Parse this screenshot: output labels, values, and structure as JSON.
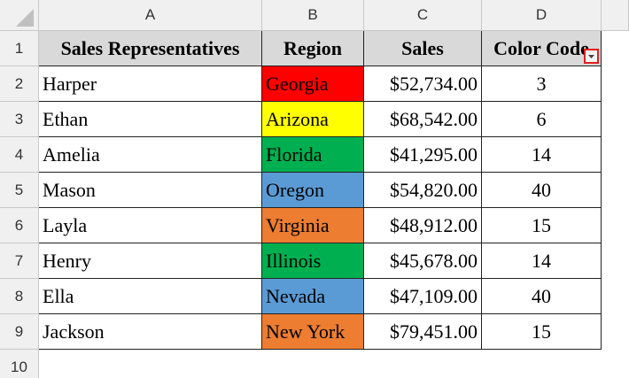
{
  "columns": [
    "A",
    "B",
    "C",
    "D"
  ],
  "row_numbers": [
    1,
    2,
    3,
    4,
    5,
    6,
    7,
    8,
    9,
    10
  ],
  "table": {
    "header": [
      "Sales Representatives",
      "Region",
      "Sales",
      "Color Code"
    ],
    "rows": [
      [
        "Harper",
        "Georgia",
        "$52,734.00",
        3
      ],
      [
        "Ethan",
        "Arizona",
        "$68,542.00",
        6
      ],
      [
        "Amelia",
        "Florida",
        "$41,295.00",
        14
      ],
      [
        "Mason",
        "Oregon",
        "$54,820.00",
        40
      ],
      [
        "Layla",
        "Virginia",
        "$48,912.00",
        15
      ],
      [
        "Henry",
        "Illinois",
        "$45,678.00",
        14
      ],
      [
        "Ella",
        "Nevada",
        "$47,109.00",
        40
      ],
      [
        "Jackson",
        "New York",
        "$79,451.00",
        15
      ]
    ],
    "region_colors": [
      "#ff0000",
      "#ffff00",
      "#00b050",
      "#5b9bd5",
      "#ed7d31",
      "#00b050",
      "#5b9bd5",
      "#ed7d31"
    ]
  }
}
